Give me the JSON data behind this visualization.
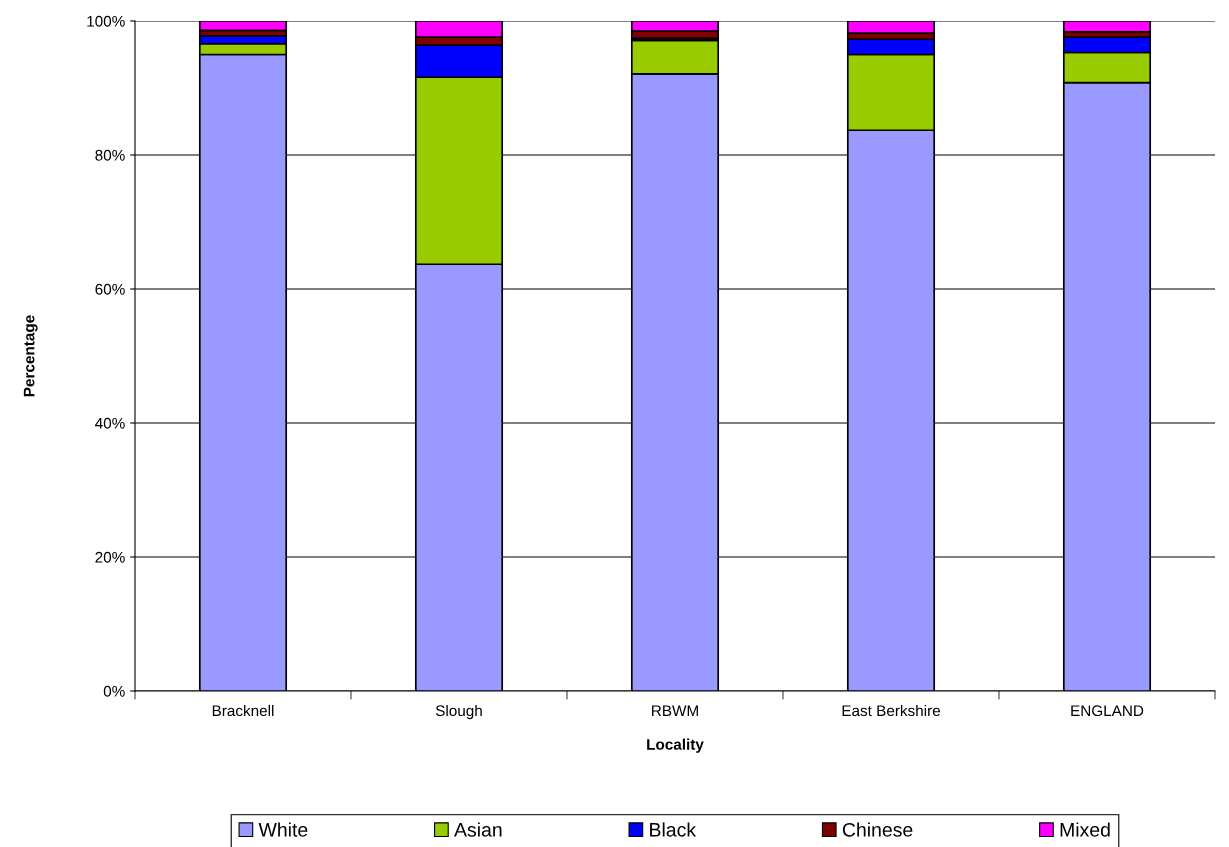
{
  "chart_data": {
    "type": "bar",
    "stacked": true,
    "xlabel": "Locality",
    "ylabel": "Percentage",
    "categories": [
      "Bracknell",
      "Slough",
      "RBWM",
      "East Berkshire",
      "ENGLAND"
    ],
    "series": [
      {
        "name": "White",
        "color": "#9999ff",
        "values": [
          95.0,
          63.7,
          92.1,
          83.7,
          90.8
        ]
      },
      {
        "name": "Asian",
        "color": "#99cc00",
        "values": [
          1.6,
          27.9,
          5.0,
          11.3,
          4.5
        ]
      },
      {
        "name": "Black",
        "color": "#0000ff",
        "values": [
          1.2,
          4.8,
          0.3,
          2.3,
          2.3
        ]
      },
      {
        "name": "Chinese",
        "color": "#800000",
        "values": [
          0.8,
          1.2,
          1.1,
          0.9,
          0.8
        ]
      },
      {
        "name": "Mixed",
        "color": "#ff00ff",
        "values": [
          1.4,
          2.4,
          1.5,
          1.8,
          1.6
        ]
      }
    ],
    "ylim": [
      0,
      100
    ],
    "yticks": [
      {
        "value": 0,
        "label": "0%"
      },
      {
        "value": 20,
        "label": "20%"
      },
      {
        "value": 40,
        "label": "40%"
      },
      {
        "value": 60,
        "label": "60%"
      },
      {
        "value": 80,
        "label": "80%"
      },
      {
        "value": 100,
        "label": "100%"
      }
    ],
    "grid": "y",
    "legend": "bottom"
  }
}
